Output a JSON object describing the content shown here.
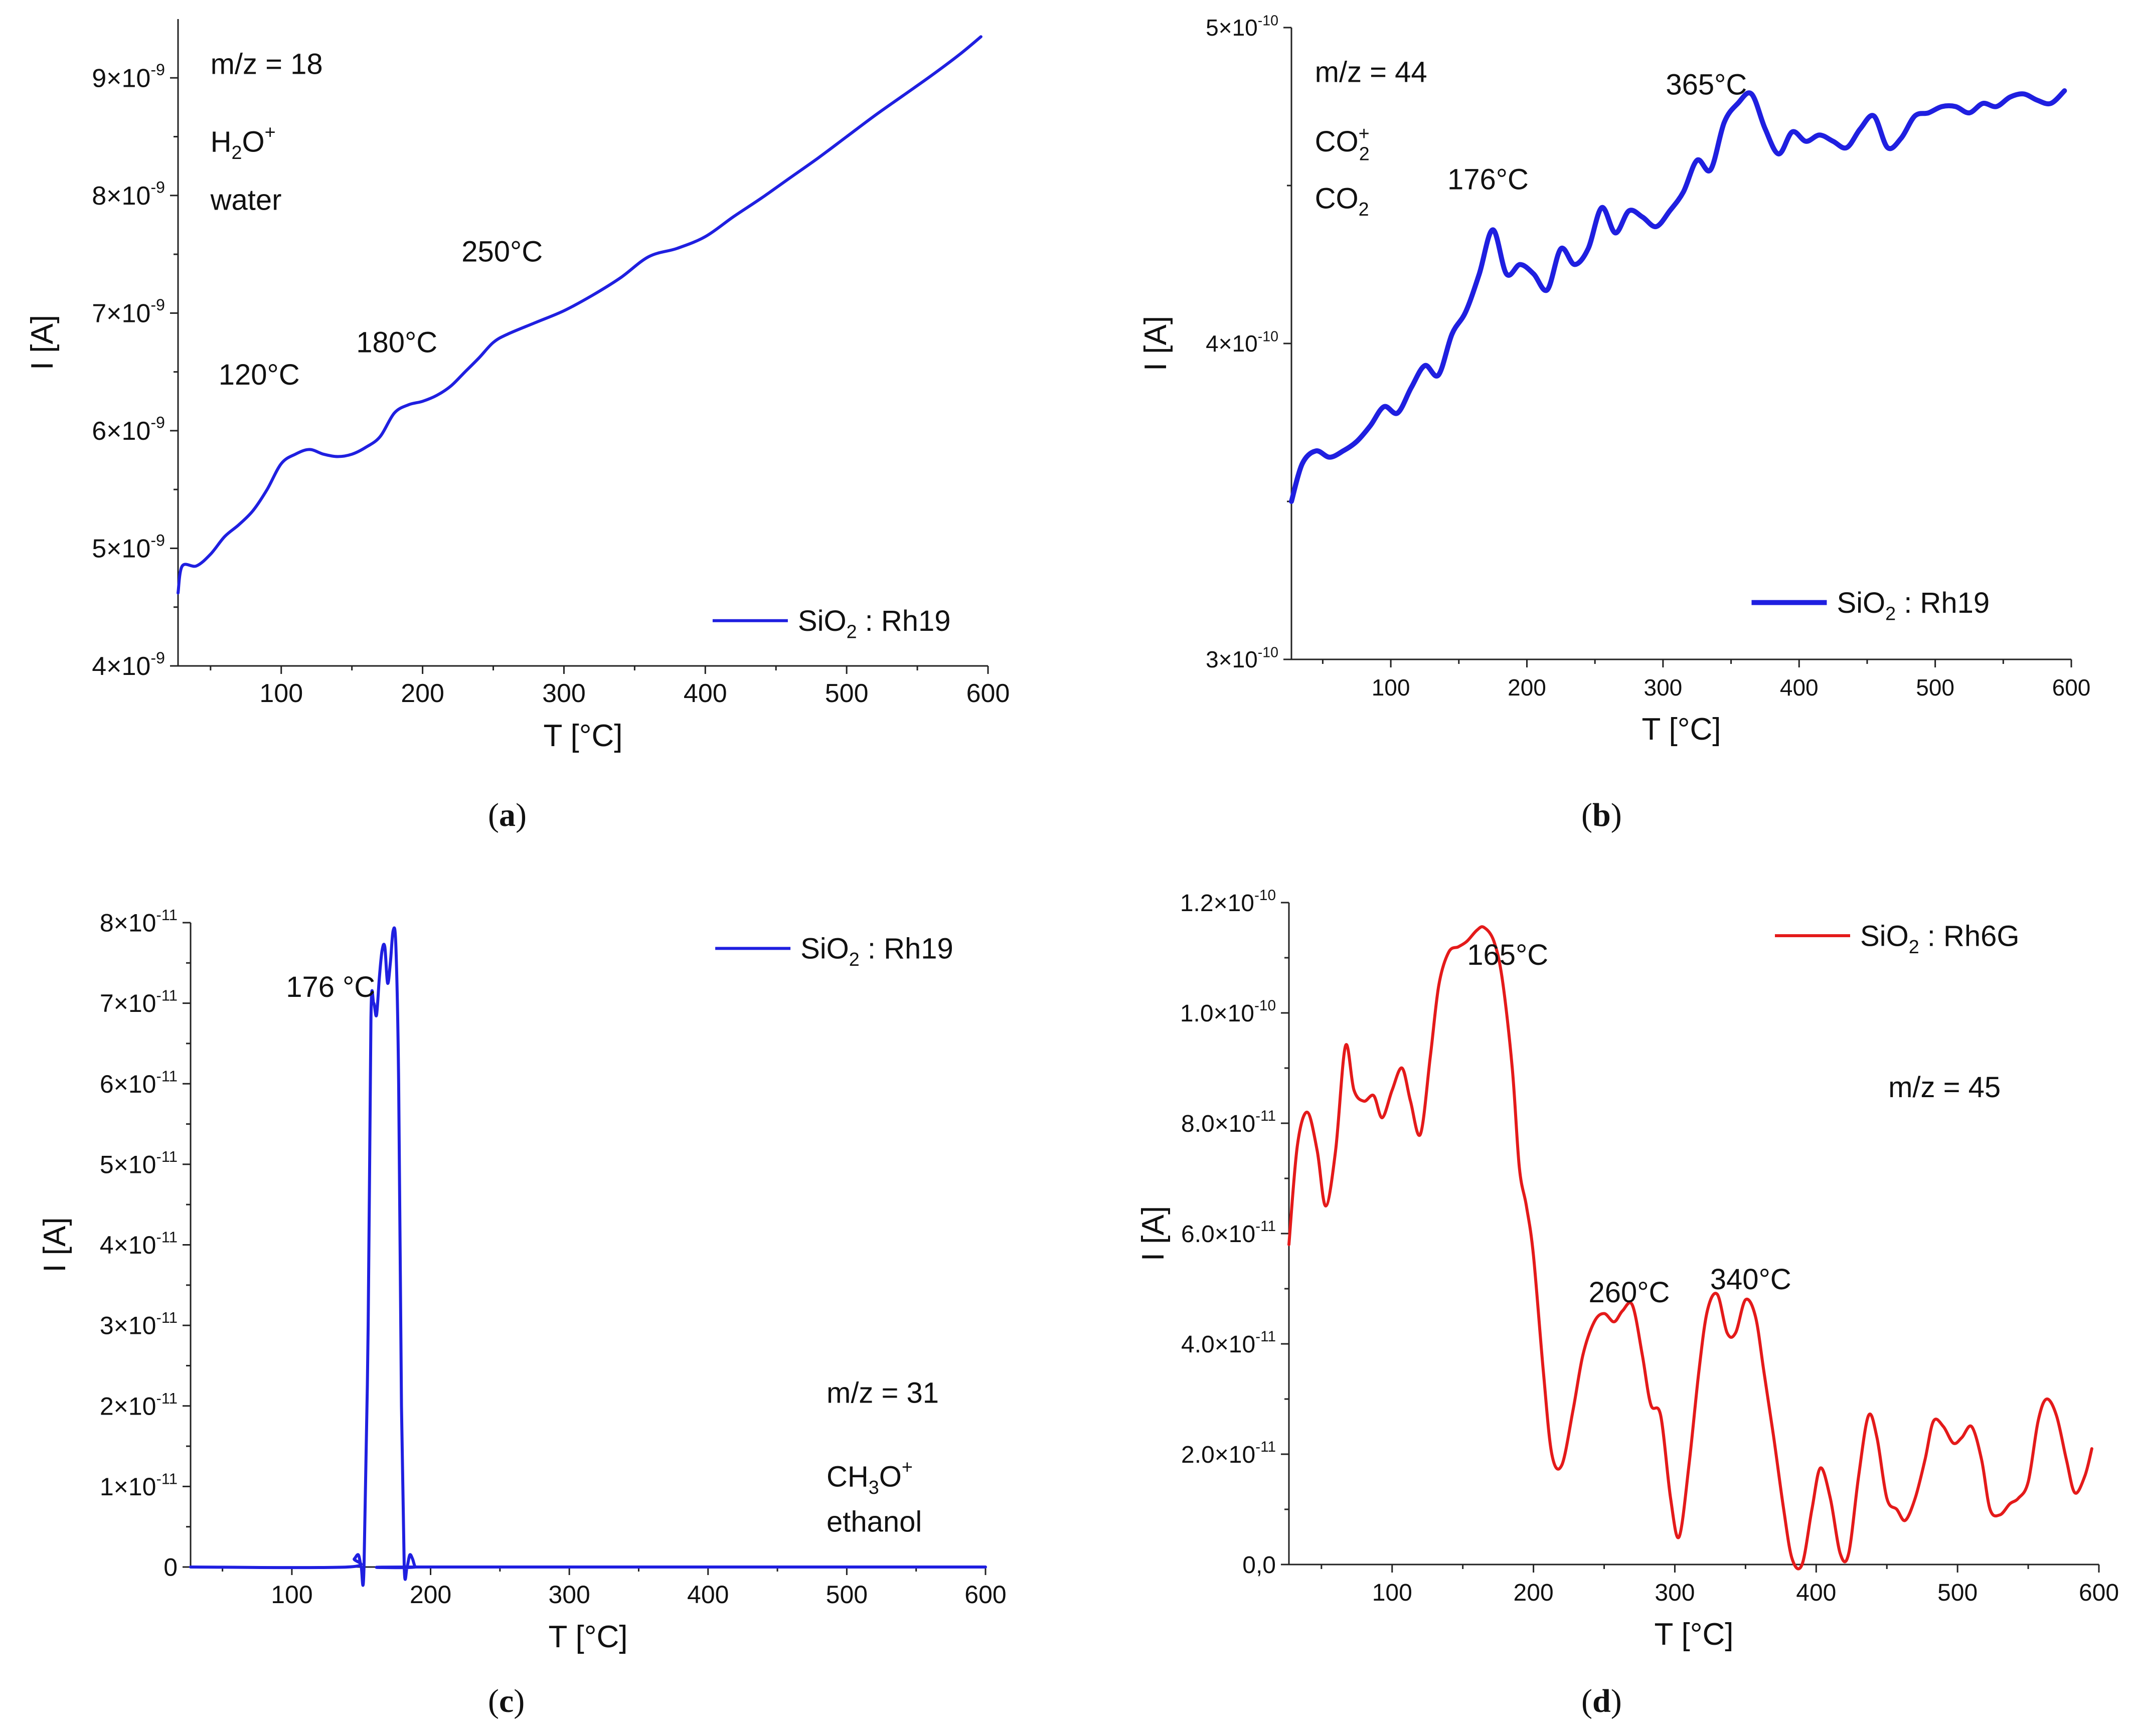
{
  "figure": {
    "captions": [
      "a",
      "b",
      "c",
      "d"
    ]
  },
  "chart_data": [
    {
      "panel": "a",
      "type": "line",
      "xlabel": "T [°C]",
      "ylabel": "I [A]",
      "xlim": [
        27,
        600
      ],
      "ylim": [
        4e-09,
        9.5e-09
      ],
      "xticks": [
        100,
        200,
        300,
        400,
        500,
        600
      ],
      "ytick_labels": [
        {
          "mant": "4",
          "exp": "-9",
          "value": 4e-09
        },
        {
          "mant": "5",
          "exp": "-9",
          "value": 5e-09
        },
        {
          "mant": "6",
          "exp": "-9",
          "value": 6e-09
        },
        {
          "mant": "7",
          "exp": "-9",
          "value": 7e-09
        },
        {
          "mant": "8",
          "exp": "-9",
          "value": 8e-09
        },
        {
          "mant": "9",
          "exp": "-9",
          "value": 9e-09
        }
      ],
      "annotations": {
        "mz": "m/z = 18",
        "species_base": "H",
        "species_sub": "2",
        "species_tail": "O",
        "species_sup": "+",
        "compound": "water"
      },
      "peak_labels": [
        "120°C",
        "180°C",
        "250°C"
      ],
      "legend": {
        "base": "SiO",
        "sub": "2",
        "tail": " : Rh19"
      },
      "color": "#1f1fe0",
      "series": [
        {
          "name": "SiO2 : Rh19",
          "x": [
            27,
            30,
            40,
            50,
            60,
            70,
            80,
            90,
            100,
            110,
            120,
            130,
            140,
            150,
            160,
            170,
            180,
            190,
            200,
            210,
            220,
            230,
            240,
            250,
            260,
            280,
            300,
            320,
            340,
            360,
            380,
            400,
            420,
            440,
            460,
            480,
            500,
            520,
            540,
            560,
            580,
            595
          ],
          "y": [
            4.62e-09,
            4.85e-09,
            4.85e-09,
            4.95e-09,
            5.1e-09,
            5.2e-09,
            5.32e-09,
            5.5e-09,
            5.72e-09,
            5.8e-09,
            5.84e-09,
            5.8e-09,
            5.78e-09,
            5.8e-09,
            5.86e-09,
            5.95e-09,
            6.15e-09,
            6.22e-09,
            6.25e-09,
            6.3e-09,
            6.38e-09,
            6.5e-09,
            6.62e-09,
            6.75e-09,
            6.82e-09,
            6.92e-09,
            7.02e-09,
            7.15e-09,
            7.3e-09,
            7.48e-09,
            7.55e-09,
            7.65e-09,
            7.82e-09,
            7.98e-09,
            8.15e-09,
            8.32e-09,
            8.5e-09,
            8.68e-09,
            8.85e-09,
            9.02e-09,
            9.2e-09,
            9.35e-09
          ]
        }
      ]
    },
    {
      "panel": "b",
      "type": "line",
      "xlabel": "T [°C]",
      "ylabel": "I [A]",
      "xlim": [
        27,
        600
      ],
      "ylim": [
        3e-10,
        5e-10
      ],
      "xticks": [
        100,
        200,
        300,
        400,
        500,
        600
      ],
      "ytick_labels": [
        {
          "mant": "3",
          "exp": "-10",
          "value": 3e-10
        },
        {
          "mant": "4",
          "exp": "-10",
          "value": 4e-10
        },
        {
          "mant": "5",
          "exp": "-10",
          "value": 5e-10
        }
      ],
      "annotations": {
        "mz": "m/z = 44",
        "species_base": "CO",
        "species_sub": "2",
        "species_sup": "+",
        "compound_base": "CO",
        "compound_sub": "2"
      },
      "peak_labels": [
        "176°C",
        "365°C"
      ],
      "legend": {
        "base": "SiO",
        "sub": "2",
        "tail": " : Rh19"
      },
      "color": "#1f1fe0",
      "series": [
        {
          "name": "SiO2 : Rh19",
          "x": [
            27,
            35,
            45,
            55,
            65,
            75,
            85,
            95,
            105,
            115,
            125,
            135,
            145,
            155,
            165,
            175,
            185,
            195,
            205,
            215,
            225,
            235,
            245,
            255,
            265,
            275,
            285,
            295,
            305,
            315,
            325,
            335,
            345,
            355,
            365,
            375,
            385,
            395,
            405,
            415,
            425,
            435,
            445,
            455,
            465,
            475,
            485,
            495,
            505,
            515,
            525,
            535,
            545,
            555,
            565,
            575,
            585,
            595
          ],
          "y": [
            3.5e-10,
            3.62e-10,
            3.66e-10,
            3.64e-10,
            3.66e-10,
            3.69e-10,
            3.74e-10,
            3.8e-10,
            3.78e-10,
            3.86e-10,
            3.93e-10,
            3.9e-10,
            4.03e-10,
            4.1e-10,
            4.22e-10,
            4.36e-10,
            4.22e-10,
            4.25e-10,
            4.22e-10,
            4.17e-10,
            4.3e-10,
            4.25e-10,
            4.3e-10,
            4.43e-10,
            4.35e-10,
            4.42e-10,
            4.4e-10,
            4.37e-10,
            4.42e-10,
            4.48e-10,
            4.58e-10,
            4.55e-10,
            4.7e-10,
            4.76e-10,
            4.79e-10,
            4.68e-10,
            4.6e-10,
            4.67e-10,
            4.64e-10,
            4.66e-10,
            4.64e-10,
            4.62e-10,
            4.68e-10,
            4.72e-10,
            4.62e-10,
            4.65e-10,
            4.72e-10,
            4.73e-10,
            4.75e-10,
            4.75e-10,
            4.73e-10,
            4.76e-10,
            4.75e-10,
            4.78e-10,
            4.79e-10,
            4.77e-10,
            4.76e-10,
            4.8e-10
          ]
        }
      ]
    },
    {
      "panel": "c",
      "type": "line",
      "xlabel": "T [°C]",
      "ylabel": "I [A]",
      "xlim": [
        27,
        600
      ],
      "ylim": [
        0,
        8e-11
      ],
      "xticks": [
        100,
        200,
        300,
        400,
        500,
        600
      ],
      "ytick_labels": [
        {
          "mant": "0",
          "exp": "",
          "value": 0
        },
        {
          "mant": "1",
          "exp": "-11",
          "value": 1e-11
        },
        {
          "mant": "2",
          "exp": "-11",
          "value": 2e-11
        },
        {
          "mant": "3",
          "exp": "-11",
          "value": 3e-11
        },
        {
          "mant": "4",
          "exp": "-11",
          "value": 4e-11
        },
        {
          "mant": "5",
          "exp": "-11",
          "value": 5e-11
        },
        {
          "mant": "6",
          "exp": "-11",
          "value": 6e-11
        },
        {
          "mant": "7",
          "exp": "-11",
          "value": 7e-11
        },
        {
          "mant": "8",
          "exp": "-11",
          "value": 8e-11
        }
      ],
      "annotations": {
        "mz": "m/z = 31",
        "species_base": "CH",
        "species_sub": "3",
        "species_tail": "O",
        "species_sup": "+",
        "compound": "ethanol"
      },
      "peak_labels": [
        "176 °C"
      ],
      "legend": {
        "base": "SiO",
        "sub": "2",
        "tail": " : Rh19"
      },
      "color": "#1f1fe0",
      "series": [
        {
          "name": "SiO2 : Rh19",
          "x": [
            27,
            140,
            145,
            148,
            150,
            152,
            155,
            157,
            159,
            161,
            163,
            165,
            167,
            169,
            171,
            173,
            175,
            177,
            179,
            181,
            183,
            185,
            187,
            189,
            192,
            600
          ],
          "y": [
            0,
            0,
            1e-12,
            1.5e-12,
            0,
            0,
            3e-11,
            6.8e-11,
            7e-11,
            6.85e-11,
            7.3e-11,
            7.65e-11,
            7.7e-11,
            7.25e-11,
            7.5e-11,
            7.9e-11,
            7.7e-11,
            6e-11,
            2e-11,
            0,
            0,
            1.5e-12,
            1e-12,
            0,
            0,
            0
          ]
        }
      ]
    },
    {
      "panel": "d",
      "type": "line",
      "xlabel": "T [°C]",
      "ylabel": "I [A]",
      "xlim": [
        27,
        600
      ],
      "ylim": [
        0,
        1.2e-10
      ],
      "xticks": [
        100,
        200,
        300,
        400,
        500,
        600
      ],
      "ytick_labels": [
        {
          "mant": "0,0",
          "exp": "",
          "value": 0
        },
        {
          "mant": "2.0",
          "exp": "-11",
          "value": 2e-11
        },
        {
          "mant": "4.0",
          "exp": "-11",
          "value": 4e-11
        },
        {
          "mant": "6.0",
          "exp": "-11",
          "value": 6e-11
        },
        {
          "mant": "8.0",
          "exp": "-11",
          "value": 8e-11
        },
        {
          "mant": "1.0",
          "exp": "-10",
          "value": 1e-10
        },
        {
          "mant": "1.2",
          "exp": "-10",
          "value": 1.2e-10
        }
      ],
      "annotations": {
        "mz": "m/z = 45"
      },
      "peak_labels": [
        "165°C",
        "260°C",
        "340°C"
      ],
      "legend": {
        "base": "SiO",
        "sub": "2",
        "tail": " : Rh6G"
      },
      "color": "#e41a1a",
      "series": [
        {
          "name": "SiO2 : Rh6G",
          "x": [
            27,
            33,
            40,
            47,
            53,
            60,
            67,
            73,
            80,
            87,
            93,
            100,
            107,
            113,
            120,
            127,
            133,
            140,
            147,
            153,
            160,
            165,
            172,
            178,
            185,
            190,
            195,
            200,
            207,
            213,
            220,
            228,
            235,
            243,
            250,
            257,
            263,
            270,
            277,
            283,
            290,
            297,
            303,
            310,
            317,
            323,
            330,
            337,
            343,
            350,
            357,
            363,
            370,
            377,
            383,
            390,
            397,
            403,
            410,
            417,
            423,
            430,
            437,
            443,
            450,
            457,
            463,
            470,
            477,
            483,
            490,
            497,
            503,
            510,
            517,
            523,
            530,
            537,
            543,
            550,
            557,
            563,
            570,
            577,
            583,
            590,
            595
          ],
          "y": [
            5.8e-11,
            7.6e-11,
            8.2e-11,
            7.5e-11,
            6.5e-11,
            7.5e-11,
            9.4e-11,
            8.6e-11,
            8.4e-11,
            8.5e-11,
            8.1e-11,
            8.6e-11,
            9e-11,
            8.4e-11,
            7.8e-11,
            9.2e-11,
            1.05e-10,
            1.11e-10,
            1.12e-10,
            1.13e-10,
            1.15e-10,
            1.155e-10,
            1.13e-10,
            1.06e-10,
            9e-11,
            7.2e-11,
            6.5e-11,
            5.6e-11,
            3.5e-11,
            2e-11,
            1.8e-11,
            2.8e-11,
            3.8e-11,
            4.4e-11,
            4.55e-11,
            4.4e-11,
            4.6e-11,
            4.7e-11,
            3.8e-11,
            2.9e-11,
            2.7e-11,
            1.2e-11,
            5e-12,
            1.8e-11,
            3.5e-11,
            4.6e-11,
            4.9e-11,
            4.2e-11,
            4.2e-11,
            4.8e-11,
            4.5e-11,
            3.5e-11,
            2.3e-11,
            1e-11,
            1e-12,
            0.0,
            1e-11,
            1.75e-11,
            1.2e-11,
            2e-12,
            2e-12,
            1.6e-11,
            2.7e-11,
            2.3e-11,
            1.2e-11,
            1e-11,
            8e-12,
            1.2e-11,
            1.9e-11,
            2.6e-11,
            2.5e-11,
            2.2e-11,
            2.3e-11,
            2.5e-11,
            1.9e-11,
            1e-11,
            9e-12,
            1.1e-11,
            1.2e-11,
            1.5e-11,
            2.6e-11,
            3e-11,
            2.7e-11,
            1.9e-11,
            1.3e-11,
            1.6e-11,
            2.1e-11
          ]
        }
      ]
    }
  ]
}
